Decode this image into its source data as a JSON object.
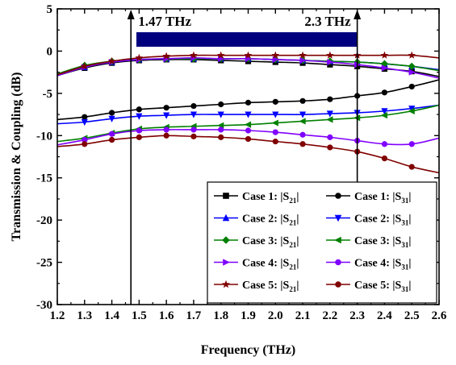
{
  "chart_data": {
    "type": "line",
    "xlabel": "Frequency (THz)",
    "ylabel": "Transmission & Coupling (dB)",
    "xlim": [
      1.2,
      2.6
    ],
    "ylim": [
      -30,
      5
    ],
    "x_ticks": [
      "1.2",
      "1.3",
      "1.4",
      "1.5",
      "1.6",
      "1.7",
      "1.8",
      "1.9",
      "2.0",
      "2.1",
      "2.2",
      "2.3",
      "2.4",
      "2.5",
      "2.6"
    ],
    "y_ticks": [
      "5",
      "0",
      "-5",
      "-10",
      "-15",
      "-20",
      "-25",
      "-30"
    ],
    "grid": false,
    "legend_position": "bottom-right",
    "annotations": {
      "band_start_label": "1.47 THz",
      "band_end_label": "2.3 THz",
      "band_start_x": 1.47,
      "band_end_x": 2.3,
      "band_color": "#00007f"
    },
    "x": [
      1.2,
      1.3,
      1.4,
      1.5,
      1.6,
      1.7,
      1.8,
      1.9,
      2.0,
      2.1,
      2.2,
      2.3,
      2.4,
      2.5,
      2.6
    ],
    "series": [
      {
        "name": "Case 1: |S21|",
        "case": "Case 1: ",
        "param": "21",
        "marker": "square",
        "color": "#000000",
        "values": [
          -2.9,
          -2.0,
          -1.4,
          -1.1,
          -1.0,
          -1.0,
          -1.1,
          -1.2,
          -1.3,
          -1.4,
          -1.6,
          -1.8,
          -2.1,
          -2.4,
          -3.0
        ]
      },
      {
        "name": "Case 1: |S31|",
        "case": "Case 1: ",
        "param": "31",
        "marker": "circle",
        "color": "#000000",
        "values": [
          -8.1,
          -7.8,
          -7.3,
          -6.9,
          -6.7,
          -6.5,
          -6.3,
          -6.1,
          -6.0,
          -5.9,
          -5.7,
          -5.3,
          -4.9,
          -4.2,
          -3.4
        ]
      },
      {
        "name": "Case 2: |S21|",
        "case": "Case 2: ",
        "param": "21",
        "marker": "triangle-up",
        "color": "#0000ff",
        "values": [
          -2.9,
          -1.9,
          -1.3,
          -1.0,
          -0.9,
          -0.9,
          -0.9,
          -0.9,
          -1.0,
          -1.1,
          -1.2,
          -1.3,
          -1.5,
          -1.8,
          -2.2
        ]
      },
      {
        "name": "Case 2: |S31|",
        "case": "Case 2: ",
        "param": "31",
        "marker": "triangle-down",
        "color": "#0000ff",
        "values": [
          -8.6,
          -8.4,
          -8.0,
          -7.7,
          -7.6,
          -7.5,
          -7.5,
          -7.5,
          -7.5,
          -7.5,
          -7.4,
          -7.3,
          -7.1,
          -6.8,
          -6.4
        ]
      },
      {
        "name": "Case 3: |S21|",
        "case": "Case 3: ",
        "param": "21",
        "marker": "diamond",
        "color": "#008000",
        "values": [
          -2.7,
          -1.7,
          -1.2,
          -1.0,
          -0.9,
          -0.9,
          -0.9,
          -0.9,
          -1.0,
          -1.1,
          -1.2,
          -1.3,
          -1.5,
          -1.8,
          -2.3
        ]
      },
      {
        "name": "Case 3: |S31|",
        "case": "Case 3: ",
        "param": "31",
        "marker": "triangle-left",
        "color": "#008000",
        "values": [
          -10.7,
          -10.3,
          -9.7,
          -9.2,
          -9.0,
          -8.9,
          -8.8,
          -8.7,
          -8.5,
          -8.3,
          -8.1,
          -7.9,
          -7.6,
          -7.1,
          -6.4
        ]
      },
      {
        "name": "Case 4: |S21|",
        "case": "Case 4: ",
        "param": "21",
        "marker": "triangle-right",
        "color": "#8000ff",
        "values": [
          -2.9,
          -1.9,
          -1.3,
          -1.0,
          -0.9,
          -0.8,
          -0.9,
          -0.9,
          -1.0,
          -1.1,
          -1.3,
          -1.6,
          -2.0,
          -2.5,
          -3.2
        ]
      },
      {
        "name": "Case 4: |S31|",
        "case": "Case 4: ",
        "param": "31",
        "marker": "circle",
        "color": "#8000ff",
        "values": [
          -11.1,
          -10.5,
          -9.8,
          -9.4,
          -9.3,
          -9.3,
          -9.3,
          -9.4,
          -9.6,
          -9.9,
          -10.2,
          -10.6,
          -11.0,
          -11.0,
          -10.3
        ]
      },
      {
        "name": "Case 5: |S21|",
        "case": "Case 5: ",
        "param": "21",
        "marker": "star",
        "color": "#800000",
        "values": [
          -2.8,
          -1.8,
          -1.2,
          -0.8,
          -0.6,
          -0.5,
          -0.5,
          -0.5,
          -0.5,
          -0.5,
          -0.5,
          -0.5,
          -0.5,
          -0.5,
          -0.8
        ]
      },
      {
        "name": "Case 5: |S31|",
        "case": "Case 5: ",
        "param": "31",
        "marker": "circle",
        "color": "#800000",
        "values": [
          -11.3,
          -11.0,
          -10.5,
          -10.2,
          -10.0,
          -10.1,
          -10.2,
          -10.4,
          -10.7,
          -11.0,
          -11.4,
          -11.9,
          -12.7,
          -13.7,
          -14.4
        ]
      }
    ]
  }
}
